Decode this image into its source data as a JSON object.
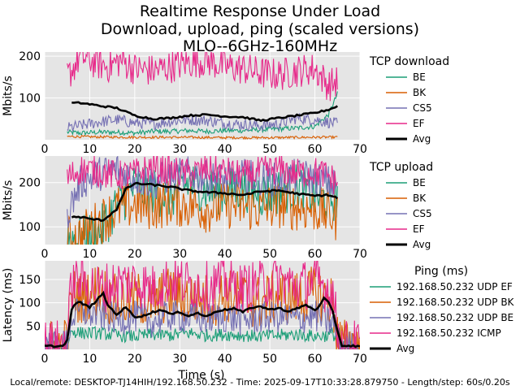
{
  "title_lines": [
    "Realtime Response Under Load",
    "Download, upload, ping (scaled versions)",
    "MLO--6GHz-160MHz"
  ],
  "footer": "Local/remote: DESKTOP-TJ14HIH/192.168.50.232 - Time: 2025-09-17T10:33:28.879750 - Length/step: 60s/0.20s",
  "xlabel": "Time (s)",
  "colors": {
    "BE": "#1b9e77",
    "BK": "#d95f02",
    "CS5": "#7570b3",
    "EF": "#e7298a",
    "ICMP": "#e7298a",
    "Avg": "#000000",
    "panel_bg": "#e5e5e5",
    "grid": "#ffffff"
  },
  "chart_data": [
    {
      "type": "line",
      "ylabel": "Mbits/s",
      "legend_title": "TCP download",
      "legend_placement": "right",
      "grid": true,
      "xlim": [
        0,
        70
      ],
      "ylim": [
        0,
        210
      ],
      "xticks": [
        0,
        10,
        20,
        30,
        40,
        50,
        60,
        70
      ],
      "yticks": [
        100,
        200
      ],
      "series": [
        {
          "name": "BE",
          "color_key": "BE",
          "x": [
            5,
            8,
            12,
            16,
            20,
            24,
            28,
            32,
            36,
            40,
            44,
            48,
            52,
            56,
            60,
            63,
            65
          ],
          "y": [
            18,
            16,
            18,
            18,
            16,
            20,
            20,
            22,
            20,
            22,
            22,
            24,
            26,
            28,
            32,
            60,
            110
          ]
        },
        {
          "name": "BK",
          "color_key": "BK",
          "x": [
            5,
            10,
            20,
            30,
            40,
            50,
            60,
            65
          ],
          "y": [
            8,
            7,
            6,
            6,
            5,
            5,
            6,
            6
          ]
        },
        {
          "name": "CS5",
          "color_key": "CS5",
          "x": [
            5,
            8,
            12,
            16,
            20,
            24,
            28,
            32,
            36,
            40,
            44,
            48,
            52,
            56,
            60,
            63,
            65
          ],
          "y": [
            28,
            34,
            42,
            48,
            40,
            38,
            44,
            48,
            46,
            40,
            36,
            34,
            38,
            52,
            48,
            42,
            38
          ]
        },
        {
          "name": "EF",
          "color_key": "EF",
          "x": [
            5,
            8,
            11,
            14,
            17,
            20,
            24,
            28,
            32,
            36,
            40,
            44,
            48,
            52,
            56,
            60,
            63,
            65
          ],
          "y": [
            150,
            200,
            185,
            175,
            190,
            170,
            165,
            175,
            185,
            190,
            175,
            170,
            160,
            155,
            165,
            170,
            130,
            140
          ]
        },
        {
          "name": "Avg",
          "color_key": "Avg",
          "x": [
            6,
            8,
            10,
            13,
            16,
            20,
            24,
            28,
            32,
            36,
            40,
            44,
            48,
            52,
            56,
            60,
            63,
            65
          ],
          "y": [
            88,
            88,
            85,
            80,
            76,
            58,
            50,
            52,
            58,
            60,
            56,
            54,
            46,
            52,
            58,
            64,
            72,
            80
          ]
        }
      ]
    },
    {
      "type": "line",
      "ylabel": "Mbits/s",
      "legend_title": "TCP upload",
      "legend_placement": "right",
      "grid": true,
      "xlim": [
        0,
        70
      ],
      "ylim": [
        60,
        260
      ],
      "xticks": [
        0,
        10,
        20,
        30,
        40,
        50,
        60,
        70
      ],
      "yticks": [
        100,
        200
      ],
      "series": [
        {
          "name": "BE",
          "color_key": "BE",
          "x": [
            5,
            8,
            12,
            16,
            20,
            24,
            28,
            32,
            36,
            40,
            44,
            48,
            52,
            56,
            60,
            63,
            65
          ],
          "y": [
            80,
            70,
            85,
            150,
            190,
            180,
            170,
            200,
            185,
            180,
            190,
            175,
            180,
            190,
            170,
            160,
            170
          ]
        },
        {
          "name": "BK",
          "color_key": "BK",
          "x": [
            5,
            8,
            12,
            16,
            20,
            24,
            28,
            32,
            36,
            40,
            44,
            48,
            52,
            56,
            60,
            63,
            65
          ],
          "y": [
            70,
            80,
            110,
            140,
            150,
            145,
            155,
            150,
            140,
            150,
            145,
            140,
            150,
            145,
            140,
            130,
            120
          ]
        },
        {
          "name": "CS5",
          "color_key": "CS5",
          "x": [
            5,
            8,
            12,
            16,
            20,
            24,
            28,
            32,
            36,
            40,
            44,
            48,
            52,
            56,
            60,
            63,
            65
          ],
          "y": [
            130,
            200,
            220,
            230,
            210,
            200,
            215,
            220,
            210,
            205,
            215,
            210,
            205,
            215,
            210,
            200,
            190
          ]
        },
        {
          "name": "EF",
          "color_key": "EF",
          "x": [
            5,
            8,
            12,
            16,
            20,
            24,
            28,
            32,
            36,
            40,
            44,
            48,
            52,
            56,
            60,
            63,
            65
          ],
          "y": [
            210,
            230,
            225,
            215,
            220,
            235,
            225,
            220,
            230,
            225,
            215,
            225,
            230,
            220,
            225,
            215,
            200
          ]
        },
        {
          "name": "Avg",
          "color_key": "Avg",
          "x": [
            6,
            8,
            10,
            13,
            16,
            18,
            20,
            24,
            28,
            32,
            36,
            40,
            44,
            48,
            52,
            56,
            60,
            63,
            65
          ],
          "y": [
            122,
            122,
            118,
            115,
            140,
            185,
            198,
            195,
            190,
            182,
            178,
            176,
            172,
            180,
            182,
            175,
            170,
            172,
            165
          ]
        }
      ]
    },
    {
      "type": "line",
      "ylabel": "Latency (ms)",
      "legend_title": "Ping (ms)",
      "legend_placement": "right",
      "grid": true,
      "xlim": [
        0,
        70
      ],
      "ylim": [
        0,
        190
      ],
      "xticks": [
        0,
        10,
        20,
        30,
        40,
        50,
        60,
        70
      ],
      "yticks": [
        50,
        100,
        150
      ],
      "series": [
        {
          "name": "192.168.50.232 UDP EF",
          "color_key": "BE",
          "x": [
            0,
            4,
            5,
            6,
            8,
            12,
            16,
            20,
            24,
            28,
            32,
            36,
            40,
            44,
            48,
            52,
            56,
            60,
            63,
            64,
            65,
            66,
            70
          ],
          "y": [
            5,
            5,
            10,
            40,
            35,
            35,
            30,
            28,
            32,
            30,
            35,
            30,
            32,
            30,
            28,
            30,
            32,
            28,
            30,
            35,
            15,
            5,
            5
          ]
        },
        {
          "name": "192.168.50.232 UDP BK",
          "color_key": "BK",
          "x": [
            0,
            4,
            5,
            6,
            8,
            12,
            16,
            20,
            24,
            28,
            32,
            36,
            40,
            44,
            48,
            52,
            56,
            60,
            63,
            64,
            65,
            66,
            70
          ],
          "y": [
            8,
            8,
            20,
            120,
            110,
            130,
            100,
            110,
            100,
            120,
            110,
            105,
            115,
            110,
            100,
            115,
            110,
            120,
            105,
            100,
            30,
            8,
            8
          ]
        },
        {
          "name": "192.168.50.232 UDP BE",
          "color_key": "CS5",
          "x": [
            0,
            4,
            5,
            6,
            8,
            12,
            16,
            20,
            24,
            28,
            32,
            36,
            40,
            44,
            48,
            52,
            56,
            60,
            63,
            64,
            65,
            66,
            70
          ],
          "y": [
            6,
            6,
            15,
            70,
            80,
            75,
            65,
            70,
            60,
            72,
            68,
            65,
            70,
            62,
            68,
            70,
            65,
            72,
            60,
            55,
            20,
            6,
            6
          ]
        },
        {
          "name": "192.168.50.232 ICMP",
          "color_key": "ICMP",
          "x": [
            0,
            4,
            5,
            6,
            8,
            12,
            16,
            20,
            24,
            28,
            32,
            36,
            40,
            44,
            48,
            52,
            56,
            60,
            63,
            64,
            65,
            66,
            70
          ],
          "y": [
            10,
            10,
            30,
            140,
            150,
            130,
            140,
            145,
            130,
            150,
            140,
            135,
            145,
            130,
            140,
            150,
            135,
            145,
            130,
            120,
            40,
            10,
            10
          ]
        },
        {
          "name": "Avg",
          "color_key": "Avg",
          "x": [
            0,
            4,
            5,
            6,
            7,
            8,
            10,
            12,
            13,
            14,
            16,
            18,
            20,
            22,
            24,
            26,
            28,
            30,
            32,
            34,
            36,
            38,
            40,
            42,
            44,
            46,
            48,
            50,
            52,
            54,
            56,
            58,
            60,
            61,
            62,
            63,
            64,
            65,
            66,
            70
          ],
          "y": [
            7,
            7,
            20,
            85,
            100,
            100,
            90,
            110,
            120,
            95,
            75,
            90,
            70,
            72,
            80,
            85,
            75,
            80,
            72,
            78,
            70,
            82,
            85,
            88,
            80,
            90,
            92,
            85,
            90,
            80,
            88,
            95,
            85,
            92,
            110,
            100,
            80,
            40,
            8,
            7
          ]
        }
      ]
    }
  ]
}
